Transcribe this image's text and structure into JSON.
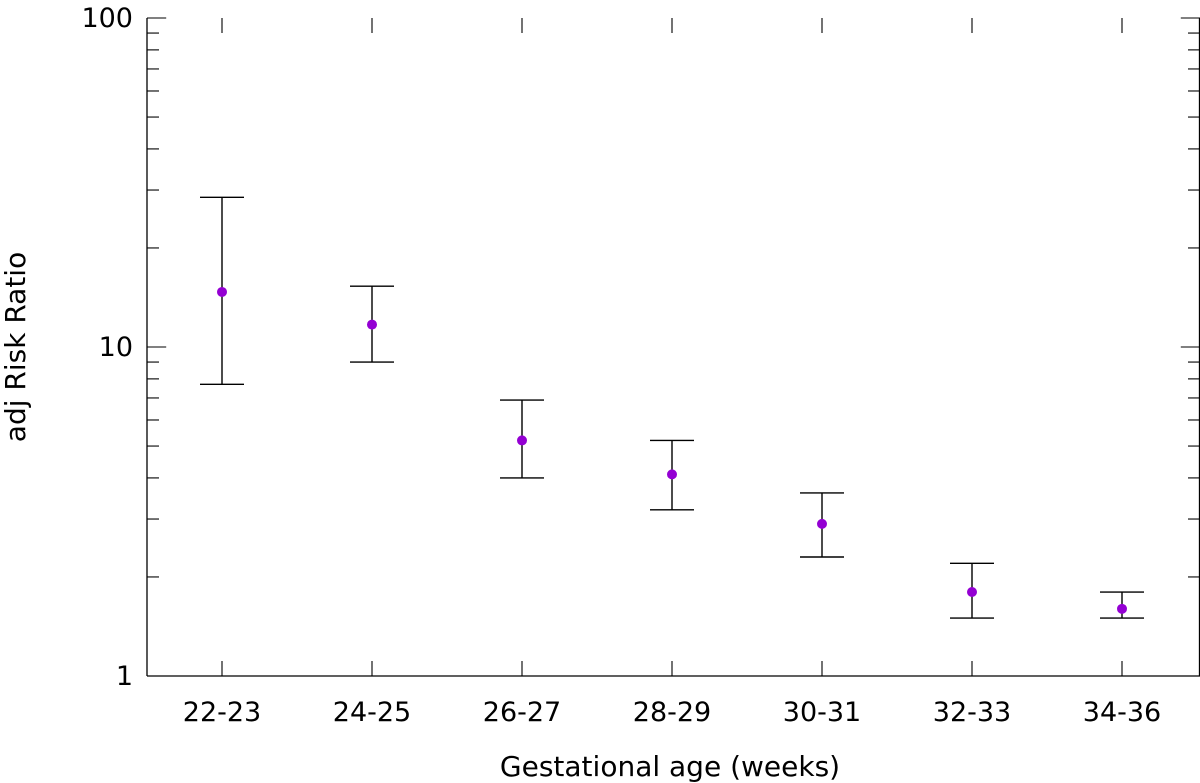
{
  "chart_data": {
    "type": "scatter",
    "title": "",
    "xlabel": "Gestational age (weeks)",
    "ylabel": "adj Risk Ratio",
    "yscale": "log",
    "ylim": [
      1,
      100
    ],
    "y_tick_labels": [
      "1",
      "10",
      "100"
    ],
    "grid": false,
    "legend": "none",
    "marker_color": "#9400D3",
    "errorbar_color": "#000000",
    "categories": [
      "22-23",
      "24-25",
      "26-27",
      "28-29",
      "30-31",
      "32-33",
      "34-36"
    ],
    "values": [
      14.7,
      11.7,
      5.2,
      4.1,
      2.9,
      1.8,
      1.6
    ],
    "lower": [
      7.7,
      9.0,
      4.0,
      3.2,
      2.3,
      1.5,
      1.5
    ],
    "upper": [
      28.5,
      15.3,
      6.9,
      5.2,
      3.6,
      2.2,
      1.8
    ]
  }
}
